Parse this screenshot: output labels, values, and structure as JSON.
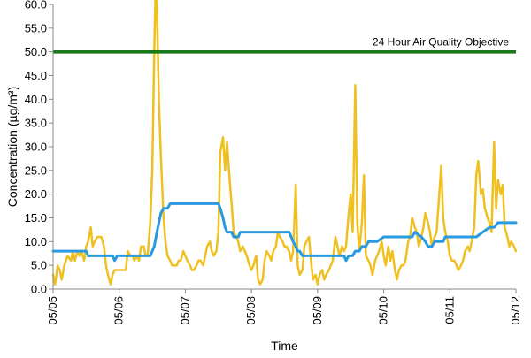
{
  "chart_data": {
    "type": "line",
    "xlabel": "Time",
    "ylabel": "Concentration (µg/m³)",
    "x_ticks": [
      "05/05",
      "05/06",
      "05/07",
      "05/08",
      "05/09",
      "05/10",
      "05/11",
      "05/12"
    ],
    "x_range_days": [
      0,
      7
    ],
    "ylim": [
      0,
      60
    ],
    "y_ticks": [
      "0.0",
      "5.0",
      "10.0",
      "15.0",
      "20.0",
      "25.0",
      "30.0",
      "35.0",
      "40.0",
      "45.0",
      "50.0",
      "55.0",
      "60.0"
    ],
    "y_tick_values": [
      0,
      5,
      10,
      15,
      20,
      25,
      30,
      35,
      40,
      45,
      50,
      55,
      60
    ],
    "grid": false,
    "objective": {
      "value": 50,
      "label": "24 Hour Air Quality Objective",
      "color": "#1a7a1a"
    },
    "series": [
      {
        "color": "#f0c020",
        "points": [
          [
            0.0,
            3
          ],
          [
            0.03,
            1
          ],
          [
            0.07,
            5
          ],
          [
            0.1,
            4
          ],
          [
            0.13,
            2
          ],
          [
            0.17,
            5
          ],
          [
            0.22,
            7
          ],
          [
            0.27,
            6
          ],
          [
            0.3,
            8
          ],
          [
            0.33,
            6
          ],
          [
            0.37,
            8
          ],
          [
            0.4,
            7
          ],
          [
            0.43,
            8
          ],
          [
            0.47,
            6
          ],
          [
            0.5,
            9
          ],
          [
            0.53,
            10
          ],
          [
            0.57,
            13
          ],
          [
            0.6,
            9
          ],
          [
            0.63,
            10
          ],
          [
            0.67,
            11
          ],
          [
            0.73,
            11
          ],
          [
            0.77,
            9
          ],
          [
            0.8,
            5
          ],
          [
            0.83,
            3
          ],
          [
            0.87,
            1
          ],
          [
            0.9,
            3
          ],
          [
            0.93,
            4
          ],
          [
            0.97,
            4
          ],
          [
            1.0,
            4
          ],
          [
            1.03,
            4
          ],
          [
            1.07,
            4
          ],
          [
            1.1,
            4
          ],
          [
            1.13,
            8
          ],
          [
            1.17,
            7
          ],
          [
            1.2,
            7
          ],
          [
            1.23,
            6
          ],
          [
            1.27,
            7
          ],
          [
            1.3,
            6
          ],
          [
            1.33,
            9
          ],
          [
            1.37,
            9
          ],
          [
            1.4,
            7
          ],
          [
            1.43,
            7
          ],
          [
            1.47,
            14
          ],
          [
            1.5,
            25
          ],
          [
            1.53,
            50
          ],
          [
            1.55,
            63
          ],
          [
            1.57,
            60
          ],
          [
            1.6,
            40
          ],
          [
            1.63,
            28
          ],
          [
            1.67,
            15
          ],
          [
            1.7,
            10
          ],
          [
            1.73,
            7
          ],
          [
            1.77,
            6
          ],
          [
            1.8,
            5
          ],
          [
            1.83,
            5
          ],
          [
            1.87,
            5
          ],
          [
            1.9,
            6
          ],
          [
            1.93,
            6
          ],
          [
            1.97,
            8
          ],
          [
            2.0,
            7
          ],
          [
            2.03,
            6
          ],
          [
            2.07,
            5
          ],
          [
            2.1,
            4
          ],
          [
            2.13,
            4
          ],
          [
            2.17,
            5
          ],
          [
            2.2,
            6
          ],
          [
            2.23,
            6
          ],
          [
            2.27,
            5
          ],
          [
            2.3,
            7
          ],
          [
            2.33,
            9
          ],
          [
            2.37,
            10
          ],
          [
            2.4,
            8
          ],
          [
            2.43,
            7
          ],
          [
            2.47,
            8
          ],
          [
            2.5,
            12
          ],
          [
            2.53,
            29
          ],
          [
            2.57,
            32
          ],
          [
            2.6,
            25
          ],
          [
            2.63,
            31
          ],
          [
            2.67,
            23
          ],
          [
            2.7,
            18
          ],
          [
            2.73,
            12
          ],
          [
            2.77,
            11
          ],
          [
            2.8,
            10
          ],
          [
            2.83,
            8
          ],
          [
            2.87,
            9
          ],
          [
            2.9,
            8
          ],
          [
            2.93,
            7
          ],
          [
            2.97,
            5
          ],
          [
            3.0,
            4
          ],
          [
            3.03,
            5
          ],
          [
            3.07,
            7
          ],
          [
            3.1,
            2
          ],
          [
            3.13,
            1
          ],
          [
            3.17,
            2
          ],
          [
            3.2,
            6
          ],
          [
            3.23,
            8
          ],
          [
            3.27,
            7
          ],
          [
            3.3,
            6
          ],
          [
            3.33,
            8
          ],
          [
            3.37,
            9
          ],
          [
            3.4,
            12
          ],
          [
            3.43,
            11
          ],
          [
            3.47,
            10
          ],
          [
            3.5,
            9
          ],
          [
            3.53,
            9
          ],
          [
            3.57,
            8
          ],
          [
            3.6,
            6
          ],
          [
            3.63,
            8
          ],
          [
            3.67,
            22
          ],
          [
            3.7,
            5
          ],
          [
            3.73,
            3
          ],
          [
            3.77,
            4
          ],
          [
            3.8,
            9
          ],
          [
            3.83,
            10
          ],
          [
            3.87,
            11
          ],
          [
            3.9,
            6
          ],
          [
            3.93,
            2
          ],
          [
            3.97,
            3
          ],
          [
            4.0,
            1
          ],
          [
            4.03,
            3
          ],
          [
            4.07,
            4
          ],
          [
            4.1,
            2
          ],
          [
            4.13,
            3
          ],
          [
            4.17,
            4
          ],
          [
            4.2,
            5
          ],
          [
            4.23,
            6
          ],
          [
            4.27,
            11
          ],
          [
            4.3,
            9
          ],
          [
            4.33,
            7
          ],
          [
            4.37,
            9
          ],
          [
            4.4,
            8
          ],
          [
            4.43,
            9
          ],
          [
            4.47,
            16
          ],
          [
            4.5,
            20
          ],
          [
            4.53,
            12
          ],
          [
            4.57,
            43
          ],
          [
            4.6,
            14
          ],
          [
            4.63,
            8
          ],
          [
            4.67,
            14
          ],
          [
            4.7,
            24
          ],
          [
            4.73,
            7
          ],
          [
            4.77,
            6
          ],
          [
            4.8,
            5
          ],
          [
            4.83,
            3
          ],
          [
            4.87,
            6
          ],
          [
            4.9,
            7
          ],
          [
            4.93,
            8
          ],
          [
            4.97,
            10
          ],
          [
            5.0,
            7
          ],
          [
            5.03,
            5
          ],
          [
            5.07,
            9
          ],
          [
            5.1,
            6
          ],
          [
            5.13,
            8
          ],
          [
            5.17,
            4
          ],
          [
            5.2,
            2
          ],
          [
            5.23,
            4
          ],
          [
            5.27,
            5
          ],
          [
            5.3,
            5
          ],
          [
            5.33,
            6
          ],
          [
            5.37,
            10
          ],
          [
            5.4,
            11
          ],
          [
            5.43,
            15
          ],
          [
            5.47,
            13
          ],
          [
            5.5,
            12
          ],
          [
            5.53,
            9
          ],
          [
            5.57,
            11
          ],
          [
            5.6,
            13
          ],
          [
            5.63,
            16
          ],
          [
            5.67,
            14
          ],
          [
            5.7,
            12
          ],
          [
            5.73,
            9
          ],
          [
            5.77,
            11
          ],
          [
            5.8,
            12
          ],
          [
            5.83,
            18
          ],
          [
            5.87,
            26
          ],
          [
            5.9,
            15
          ],
          [
            5.93,
            12
          ],
          [
            5.97,
            10
          ],
          [
            6.0,
            7
          ],
          [
            6.03,
            6
          ],
          [
            6.07,
            6
          ],
          [
            6.1,
            5
          ],
          [
            6.13,
            4
          ],
          [
            6.17,
            5
          ],
          [
            6.2,
            6
          ],
          [
            6.23,
            8
          ],
          [
            6.27,
            9
          ],
          [
            6.3,
            8
          ],
          [
            6.33,
            10
          ],
          [
            6.37,
            13
          ],
          [
            6.4,
            24
          ],
          [
            6.43,
            27
          ],
          [
            6.47,
            20
          ],
          [
            6.5,
            21
          ],
          [
            6.53,
            17
          ],
          [
            6.57,
            15
          ],
          [
            6.6,
            14
          ],
          [
            6.63,
            12
          ],
          [
            6.67,
            31
          ],
          [
            6.7,
            17
          ],
          [
            6.73,
            23
          ],
          [
            6.77,
            20
          ],
          [
            6.8,
            22
          ],
          [
            6.83,
            13
          ],
          [
            6.87,
            11
          ],
          [
            6.9,
            9
          ],
          [
            6.93,
            10
          ],
          [
            6.97,
            9
          ],
          [
            7.0,
            8
          ]
        ]
      },
      {
        "color": "#2a9ae0",
        "points": [
          [
            0.0,
            8
          ],
          [
            0.5,
            8
          ],
          [
            0.53,
            7
          ],
          [
            0.9,
            7
          ],
          [
            0.93,
            6
          ],
          [
            0.97,
            7
          ],
          [
            1.47,
            7
          ],
          [
            1.5,
            8
          ],
          [
            1.53,
            9
          ],
          [
            1.57,
            12
          ],
          [
            1.6,
            14
          ],
          [
            1.63,
            16
          ],
          [
            1.67,
            17
          ],
          [
            1.73,
            17
          ],
          [
            1.77,
            18
          ],
          [
            2.5,
            18
          ],
          [
            2.53,
            17
          ],
          [
            2.57,
            15
          ],
          [
            2.6,
            13
          ],
          [
            2.63,
            12
          ],
          [
            2.7,
            12
          ],
          [
            2.73,
            11
          ],
          [
            2.8,
            11
          ],
          [
            2.83,
            12
          ],
          [
            3.57,
            12
          ],
          [
            3.6,
            11
          ],
          [
            3.63,
            10
          ],
          [
            3.67,
            9
          ],
          [
            3.7,
            8
          ],
          [
            3.73,
            8
          ],
          [
            3.77,
            7
          ],
          [
            4.4,
            7
          ],
          [
            4.43,
            6
          ],
          [
            4.47,
            7
          ],
          [
            4.53,
            7
          ],
          [
            4.57,
            8
          ],
          [
            4.63,
            8
          ],
          [
            4.67,
            9
          ],
          [
            4.73,
            9
          ],
          [
            4.77,
            10
          ],
          [
            4.87,
            10
          ],
          [
            4.9,
            10
          ],
          [
            5.0,
            11
          ],
          [
            5.43,
            11
          ],
          [
            5.47,
            12
          ],
          [
            5.57,
            11
          ],
          [
            5.63,
            10
          ],
          [
            5.67,
            9
          ],
          [
            5.73,
            9
          ],
          [
            5.77,
            10
          ],
          [
            5.9,
            10
          ],
          [
            5.93,
            11
          ],
          [
            6.37,
            11
          ],
          [
            6.4,
            11
          ],
          [
            6.5,
            12
          ],
          [
            6.6,
            13
          ],
          [
            6.67,
            13
          ],
          [
            6.73,
            14
          ],
          [
            7.0,
            14
          ]
        ]
      }
    ]
  }
}
